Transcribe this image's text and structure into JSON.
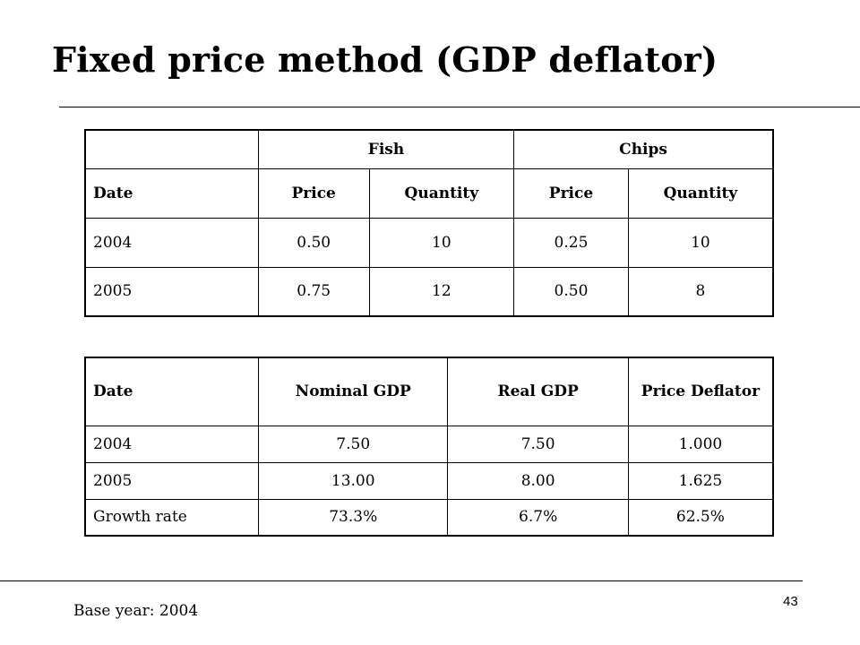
{
  "slide": {
    "title": "Fixed price method (GDP deflator)",
    "footnote": "Base year: 2004",
    "page_number": "43"
  },
  "table1": {
    "group_headers": [
      "",
      "Fish",
      "Chips"
    ],
    "columns": [
      "Date",
      "Price",
      "Quantity",
      "Price",
      "Quantity"
    ],
    "rows": [
      [
        "2004",
        "0.50",
        "10",
        "0.25",
        "10"
      ],
      [
        "2005",
        "0.75",
        "12",
        "0.50",
        "8"
      ]
    ]
  },
  "table2": {
    "columns": [
      "Date",
      "Nominal GDP",
      "Real GDP",
      "Price Deflator"
    ],
    "rows": [
      [
        "2004",
        "7.50",
        "7.50",
        "1.000"
      ],
      [
        "2005",
        "13.00",
        "8.00",
        "1.625"
      ],
      [
        "Growth rate",
        "73.3%",
        "6.7%",
        "62.5%"
      ]
    ]
  }
}
